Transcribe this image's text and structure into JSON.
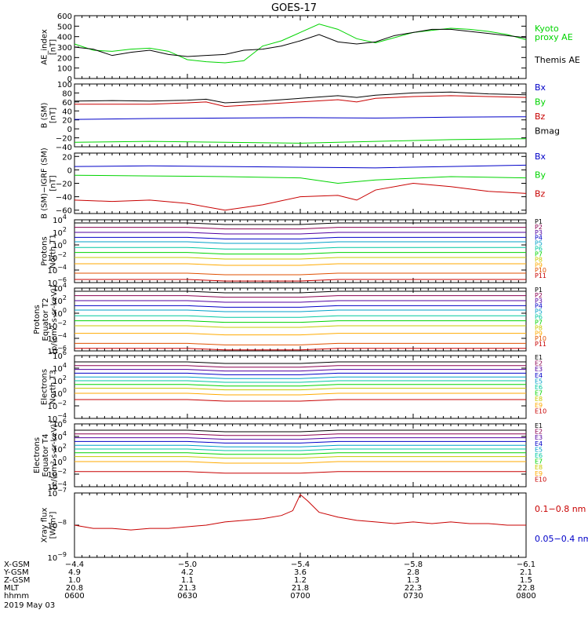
{
  "title": "GOES-17",
  "colors": {
    "black": "#000000",
    "blue": "#0000c8",
    "green": "#00d400",
    "red": "#c80000"
  },
  "chart_data": [
    {
      "type": "line",
      "ylabel": [
        "AE_index",
        "[nT]"
      ],
      "ylim": [
        0,
        600
      ],
      "yticks": [
        "0",
        "100",
        "200",
        "300",
        "400",
        "500",
        "600"
      ],
      "yvals": [
        0,
        100,
        200,
        300,
        400,
        500,
        600
      ],
      "series": [
        {
          "name": "Kyoto",
          "name2": "proxy AE",
          "color": "#00d400",
          "x": [
            0,
            5,
            10,
            15,
            20,
            25,
            30,
            35,
            40,
            45,
            50,
            55,
            60,
            65,
            70,
            75,
            80,
            85,
            90,
            95,
            100,
            105,
            110,
            115,
            120
          ],
          "y": [
            330,
            270,
            260,
            280,
            290,
            260,
            180,
            160,
            150,
            170,
            310,
            360,
            440,
            520,
            470,
            380,
            340,
            390,
            440,
            460,
            480,
            470,
            450,
            420,
            370
          ]
        },
        {
          "name": "Themis AE",
          "color": "#000000",
          "x": [
            0,
            5,
            10,
            15,
            20,
            25,
            30,
            35,
            40,
            45,
            50,
            55,
            60,
            65,
            70,
            75,
            80,
            85,
            90,
            95,
            100,
            105,
            110,
            115,
            120
          ],
          "y": [
            300,
            280,
            220,
            250,
            270,
            230,
            210,
            220,
            230,
            270,
            280,
            310,
            360,
            420,
            350,
            330,
            350,
            410,
            440,
            470,
            470,
            450,
            430,
            410,
            390
          ]
        }
      ]
    },
    {
      "type": "line",
      "ylabel": [
        "B (SM)",
        "[nT]"
      ],
      "ylim": [
        -40,
        100
      ],
      "yticks": [
        "100",
        "80",
        "60",
        "40",
        "20",
        "0",
        "−20",
        "−40"
      ],
      "yvals": [
        100,
        80,
        60,
        40,
        20,
        0,
        -20,
        -40
      ],
      "series": [
        {
          "name": "Bx",
          "color": "#0000c8",
          "x": [
            0,
            20,
            40,
            60,
            80,
            100,
            120
          ],
          "y": [
            21,
            23,
            24,
            25,
            24,
            26,
            27
          ]
        },
        {
          "name": "By",
          "color": "#00d400",
          "x": [
            0,
            20,
            40,
            60,
            80,
            100,
            120
          ],
          "y": [
            -30,
            -28,
            -30,
            -32,
            -28,
            -24,
            -22
          ]
        },
        {
          "name": "Bz",
          "color": "#c80000",
          "x": [
            0,
            10,
            20,
            30,
            35,
            40,
            50,
            60,
            70,
            75,
            80,
            90,
            100,
            110,
            120
          ],
          "y": [
            55,
            55,
            55,
            58,
            60,
            50,
            55,
            60,
            65,
            60,
            68,
            72,
            74,
            72,
            70
          ]
        },
        {
          "name": "Bmag",
          "color": "#000000",
          "x": [
            0,
            10,
            20,
            30,
            35,
            40,
            50,
            60,
            70,
            75,
            80,
            90,
            100,
            110,
            120
          ],
          "y": [
            62,
            63,
            62,
            64,
            66,
            58,
            62,
            68,
            74,
            70,
            75,
            80,
            82,
            78,
            76
          ]
        }
      ]
    },
    {
      "type": "line",
      "ylabel": [
        "B (SM)−IGRF (SM)",
        "[nT]"
      ],
      "ylim": [
        -65,
        25
      ],
      "yticks": [
        "20",
        "0",
        "−20",
        "−40",
        "−60"
      ],
      "yvals": [
        20,
        0,
        -20,
        -40,
        -60
      ],
      "series": [
        {
          "name": "Bx",
          "color": "#0000c8",
          "x": [
            0,
            20,
            40,
            60,
            80,
            100,
            120
          ],
          "y": [
            5,
            6,
            5,
            4,
            3,
            5,
            7
          ]
        },
        {
          "name": "By",
          "color": "#00d400",
          "x": [
            0,
            20,
            40,
            60,
            70,
            80,
            100,
            120
          ],
          "y": [
            -8,
            -9,
            -10,
            -12,
            -20,
            -15,
            -10,
            -12
          ]
        },
        {
          "name": "Bz",
          "color": "#c80000",
          "x": [
            0,
            10,
            20,
            30,
            40,
            50,
            60,
            70,
            75,
            80,
            90,
            100,
            110,
            120
          ],
          "y": [
            -45,
            -47,
            -45,
            -50,
            -60,
            -52,
            -40,
            -38,
            -45,
            -30,
            -20,
            -25,
            -32,
            -35
          ]
        }
      ]
    },
    {
      "type": "line",
      "ylabel": [
        "Protons",
        "North T1"
      ],
      "log": true,
      "ylim": [
        -6,
        4
      ],
      "yticks": [
        "10",
        "10",
        "10",
        "10",
        "10",
        "10"
      ],
      "yexp": [
        "4",
        "2",
        "0",
        "−2",
        "−4",
        "−6"
      ],
      "yvals": [
        4,
        2,
        0,
        -2,
        -4,
        -6
      ],
      "series": [
        {
          "name": "P1",
          "color": "#000000",
          "y0": 3.5
        },
        {
          "name": "P2",
          "color": "#8b0050",
          "y0": 2.8
        },
        {
          "name": "P3",
          "color": "#5000a0",
          "y0": 2.0
        },
        {
          "name": "P4",
          "color": "#0000c8",
          "y0": 1.2
        },
        {
          "name": "P5",
          "color": "#00a0c8",
          "y0": 0.5
        },
        {
          "name": "P6",
          "color": "#00c8a0",
          "y0": -0.4
        },
        {
          "name": "P7",
          "color": "#00d400",
          "y0": -1.2
        },
        {
          "name": "P8",
          "color": "#c8c800",
          "y0": -2.0
        },
        {
          "name": "P9",
          "color": "#ffaa00",
          "y0": -3.0
        },
        {
          "name": "P10",
          "color": "#e05000",
          "y0": -4.5
        },
        {
          "name": "P11",
          "color": "#c80000",
          "y0": -5.5
        }
      ]
    },
    {
      "type": "line",
      "ylabel": [
        "Protons",
        "Equator T2",
        "[p/(cm²-s-sr-keV)]"
      ],
      "log": true,
      "ylim": [
        -6,
        4
      ],
      "yticks": [
        "10",
        "10",
        "10",
        "10",
        "10",
        "10"
      ],
      "yexp": [
        "4",
        "2",
        "0",
        "−2",
        "−4",
        "−6"
      ],
      "yvals": [
        4,
        2,
        0,
        -2,
        -4,
        -6
      ],
      "series": [
        {
          "name": "P1",
          "color": "#000000",
          "y0": 3.5
        },
        {
          "name": "P2",
          "color": "#8b0050",
          "y0": 2.8
        },
        {
          "name": "P3",
          "color": "#5000a0",
          "y0": 2.0
        },
        {
          "name": "P4",
          "color": "#0000c8",
          "y0": 1.2
        },
        {
          "name": "P5",
          "color": "#00a0c8",
          "y0": 0.5
        },
        {
          "name": "P6",
          "color": "#00c8a0",
          "y0": -0.4
        },
        {
          "name": "P7",
          "color": "#00d400",
          "y0": -1.2
        },
        {
          "name": "P8",
          "color": "#c8c800",
          "y0": -2.0
        },
        {
          "name": "P9",
          "color": "#ffaa00",
          "y0": -3.2
        },
        {
          "name": "P10",
          "color": "#e05000",
          "y0": -4.8
        },
        {
          "name": "P11",
          "color": "#c80000",
          "y0": -5.6
        }
      ]
    },
    {
      "type": "line",
      "ylabel": [
        "Electrons",
        "North T3"
      ],
      "log": true,
      "ylim": [
        -4,
        6
      ],
      "yticks": [
        "10",
        "10",
        "10",
        "10",
        "10",
        "10"
      ],
      "yexp": [
        "6",
        "4",
        "2",
        "0",
        "−2",
        "−4"
      ],
      "yvals": [
        6,
        4,
        2,
        0,
        -2,
        -4
      ],
      "series": [
        {
          "name": "E1",
          "color": "#000000",
          "y0": 5.0
        },
        {
          "name": "E2",
          "color": "#8b0050",
          "y0": 4.4
        },
        {
          "name": "E3",
          "color": "#5000a0",
          "y0": 3.8
        },
        {
          "name": "E4",
          "color": "#0000c8",
          "y0": 3.2
        },
        {
          "name": "E5",
          "color": "#00a0c8",
          "y0": 2.6
        },
        {
          "name": "E6",
          "color": "#00c8a0",
          "y0": 2.0
        },
        {
          "name": "E7",
          "color": "#00d400",
          "y0": 1.4
        },
        {
          "name": "E8",
          "color": "#c8c800",
          "y0": 0.8
        },
        {
          "name": "E9",
          "color": "#ffaa00",
          "y0": 0.0
        },
        {
          "name": "E10",
          "color": "#c80000",
          "y0": -1.0
        }
      ]
    },
    {
      "type": "line",
      "ylabel": [
        "Electrons",
        "Equator T4",
        "[e/(cm²-s-sr-keV)]"
      ],
      "log": true,
      "ylim": [
        -4,
        6
      ],
      "yticks": [
        "10",
        "10",
        "10",
        "10",
        "10",
        "10"
      ],
      "yexp": [
        "6",
        "4",
        "2",
        "0",
        "−2",
        "−4"
      ],
      "yvals": [
        6,
        4,
        2,
        0,
        -2,
        -4
      ],
      "series": [
        {
          "name": "E1",
          "color": "#000000",
          "y0": 5.0
        },
        {
          "name": "E2",
          "color": "#8b0050",
          "y0": 4.4
        },
        {
          "name": "E3",
          "color": "#5000a0",
          "y0": 3.8
        },
        {
          "name": "E4",
          "color": "#0000c8",
          "y0": 3.2
        },
        {
          "name": "E5",
          "color": "#00a0c8",
          "y0": 2.6
        },
        {
          "name": "E6",
          "color": "#00c8a0",
          "y0": 2.0
        },
        {
          "name": "E7",
          "color": "#00d400",
          "y0": 1.4
        },
        {
          "name": "E8",
          "color": "#c8c800",
          "y0": 0.8
        },
        {
          "name": "E9",
          "color": "#ffaa00",
          "y0": 0.0
        },
        {
          "name": "E10",
          "color": "#c80000",
          "y0": -1.6
        }
      ]
    },
    {
      "type": "line",
      "ylabel": [
        "Xray flux",
        "[W/m²]"
      ],
      "log": true,
      "ylim": [
        -9,
        -7
      ],
      "yticks": [
        "10",
        "10",
        "10"
      ],
      "yexp": [
        "−7",
        "−8",
        "−9"
      ],
      "yvals": [
        -7,
        -8,
        -9
      ],
      "series": [
        {
          "name": "0.1−0.8 nm",
          "color": "#c80000",
          "x": [
            0,
            5,
            10,
            15,
            20,
            25,
            30,
            35,
            40,
            45,
            50,
            55,
            58,
            60,
            62,
            65,
            70,
            75,
            80,
            85,
            90,
            95,
            100,
            105,
            110,
            115,
            120
          ],
          "y": [
            -8.0,
            -8.1,
            -8.1,
            -8.15,
            -8.1,
            -8.1,
            -8.05,
            -8.0,
            -7.9,
            -7.85,
            -7.8,
            -7.7,
            -7.55,
            -7.05,
            -7.25,
            -7.6,
            -7.75,
            -7.85,
            -7.9,
            -7.95,
            -7.9,
            -7.95,
            -7.9,
            -7.95,
            -7.95,
            -8.0,
            -8.0
          ]
        },
        {
          "name": "0.05−0.4 nm",
          "color": "#0000c8",
          "x": [],
          "y": []
        }
      ]
    }
  ],
  "xaxis": {
    "rows": [
      "X-GSM",
      "Y-GSM",
      "Z-GSM",
      "MLT",
      "hhmm"
    ],
    "ticks": [
      {
        "t": 0,
        "vals": [
          "−4.4",
          "4.9",
          "1.0",
          "20.8",
          "0600"
        ]
      },
      {
        "t": 30,
        "vals": [
          "−5.0",
          "4.2",
          "1.1",
          "21.3",
          "0630"
        ]
      },
      {
        "t": 60,
        "vals": [
          "−5.4",
          "3.6",
          "1.2",
          "21.8",
          "0700"
        ]
      },
      {
        "t": 90,
        "vals": [
          "−5.8",
          "2.8",
          "1.3",
          "22.3",
          "0730"
        ]
      },
      {
        "t": 120,
        "vals": [
          "−6.1",
          "2.1",
          "1.5",
          "22.8",
          "0800"
        ]
      }
    ],
    "date": "2019 May 03"
  }
}
